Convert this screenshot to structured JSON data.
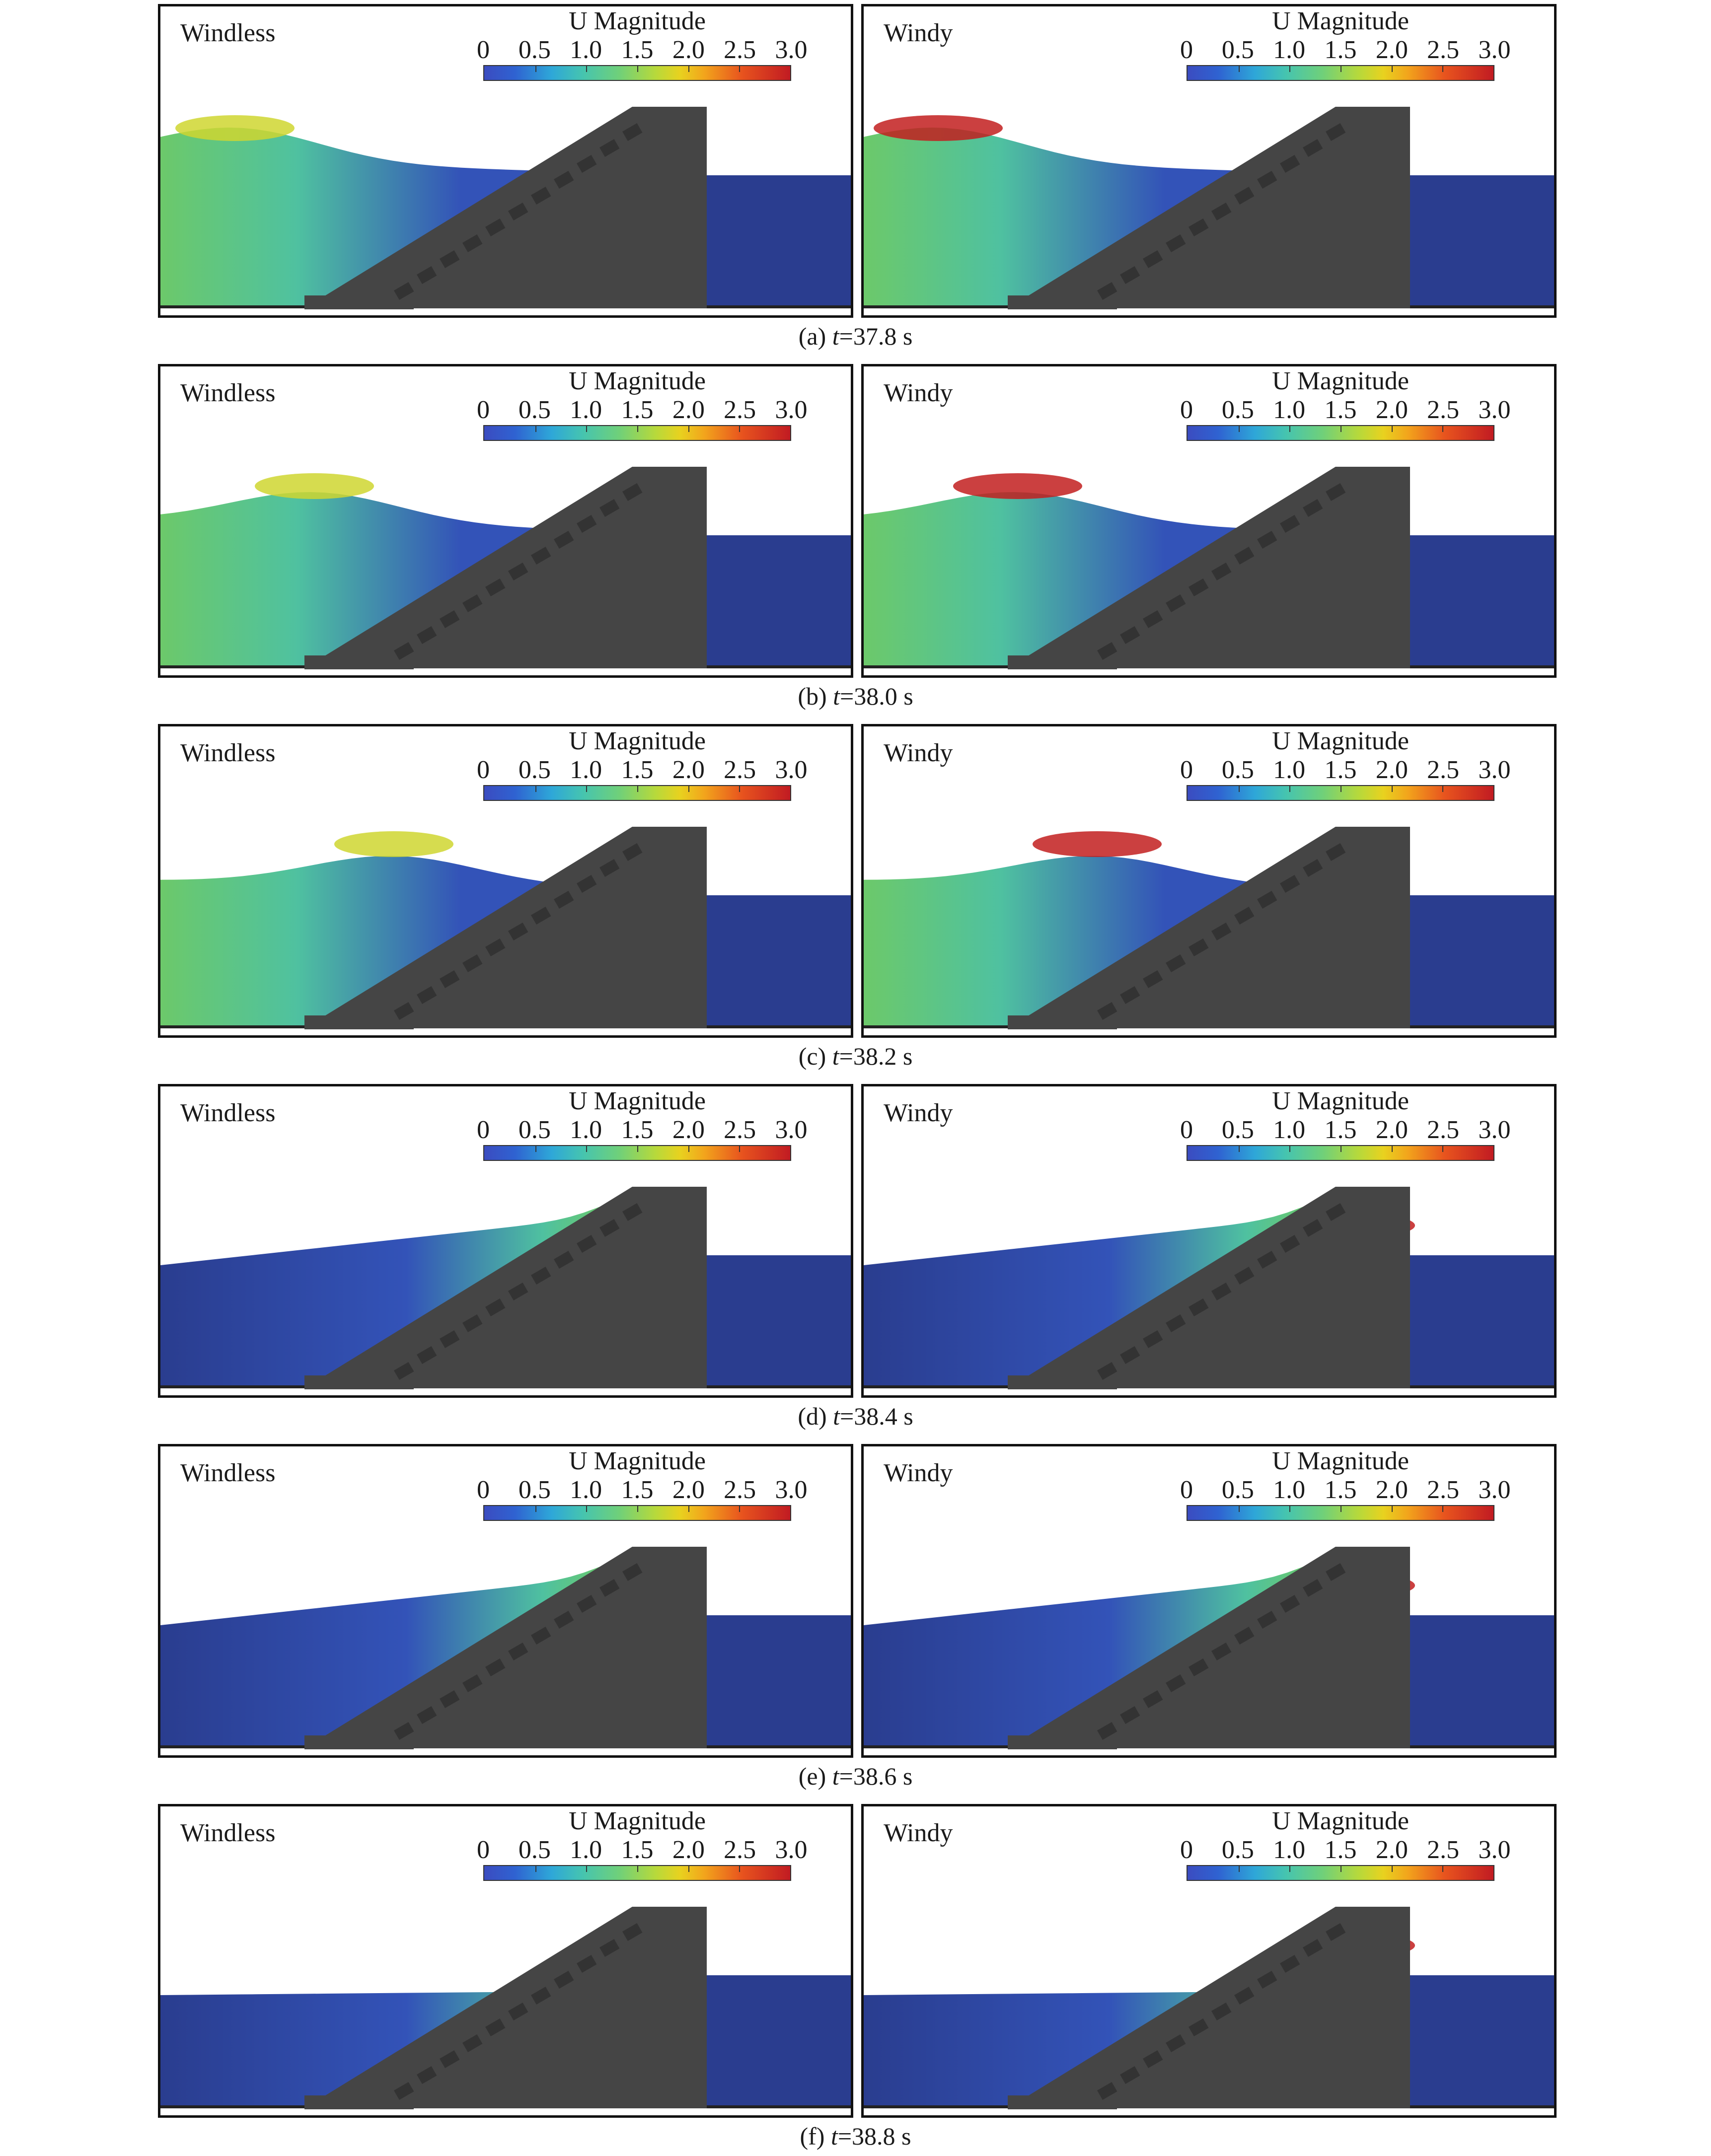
{
  "colorbar": {
    "title": "U Magnitude",
    "ticks": [
      "0",
      "0.5",
      "1.0",
      "1.5",
      "2.0",
      "2.5",
      "3.0"
    ]
  },
  "conditions": [
    "Windless",
    "Windy"
  ],
  "rows": [
    {
      "label": "(a) ",
      "var": "t",
      "value": "=37.8 s"
    },
    {
      "label": "(b) ",
      "var": "t",
      "value": "=38.0 s"
    },
    {
      "label": "(c) ",
      "var": "t",
      "value": "=38.2 s"
    },
    {
      "label": "(d) ",
      "var": "t",
      "value": "=38.4 s"
    },
    {
      "label": "(e) ",
      "var": "t",
      "value": "=38.6 s"
    },
    {
      "label": "(f) ",
      "var": "t",
      "value": "=38.8 s"
    }
  ],
  "colors": {
    "deep_blue": "#2a3d8f",
    "mid_blue": "#3353b8",
    "cyan_green": "#4fc1a0",
    "green": "#6cc96a",
    "yellow": "#cfd630",
    "red": "#c21e1e",
    "structure": "#454545"
  },
  "icons": {
    "breakwater": "breakwater-structure-icon",
    "armor": "armor-block-icon"
  }
}
